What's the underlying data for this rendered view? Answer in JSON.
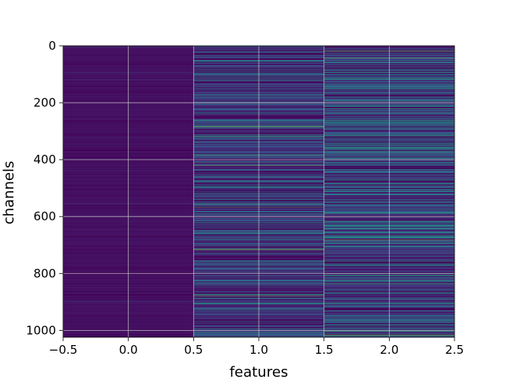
{
  "chart_data": {
    "type": "heatmap",
    "title": "",
    "xlabel": "features",
    "ylabel": "channels",
    "xlim": [
      -0.5,
      2.5
    ],
    "ylim": [
      1024,
      0
    ],
    "xticks": [
      -0.5,
      0.0,
      0.5,
      1.0,
      1.5,
      2.0,
      2.5
    ],
    "xtick_labels": [
      "−0.5",
      "0.0",
      "0.5",
      "1.0",
      "1.5",
      "2.0",
      "2.5"
    ],
    "yticks": [
      0,
      200,
      400,
      600,
      800,
      1000
    ],
    "ytick_labels": [
      "0",
      "200",
      "400",
      "600",
      "800",
      "1000"
    ],
    "grid": true,
    "colormap": "viridis",
    "columns": [
      {
        "feature": 0,
        "level": "low",
        "mean_intensity": 0.03
      },
      {
        "feature": 1,
        "level": "medium",
        "mean_intensity": 0.14
      },
      {
        "feature": 2,
        "level": "medium-high",
        "mean_intensity": 0.18
      }
    ],
    "n_channels": 1024,
    "background_color": "#440154",
    "grid_color": "#c8c8c8"
  }
}
